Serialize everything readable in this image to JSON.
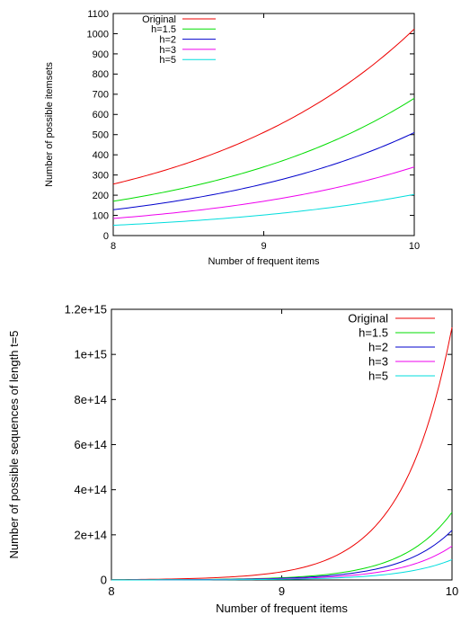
{
  "chart_data": [
    {
      "type": "line",
      "xlabel": "Number of frequent items",
      "ylabel": "Number of possible itemsets",
      "xlim": [
        8,
        10
      ],
      "ylim": [
        0,
        1100
      ],
      "xticks": [
        "8",
        "9",
        "10"
      ],
      "yticks": [
        "0",
        "100",
        "200",
        "300",
        "400",
        "500",
        "600",
        "700",
        "800",
        "900",
        "1000",
        "1100"
      ],
      "legend_position": "top-left",
      "grid": false,
      "series": [
        {
          "name": "Original",
          "color": "#ee0000",
          "x": [
            8,
            9,
            10
          ],
          "y": [
            255,
            511,
            1023
          ]
        },
        {
          "name": "h=1.5",
          "color": "#00dd00",
          "x": [
            8,
            9,
            10
          ],
          "y": [
            170,
            340,
            680
          ]
        },
        {
          "name": "h=2",
          "color": "#0000cc",
          "x": [
            8,
            9,
            10
          ],
          "y": [
            128,
            256,
            510
          ]
        },
        {
          "name": "h=3",
          "color": "#ee00ee",
          "x": [
            8,
            9,
            10
          ],
          "y": [
            85,
            170,
            340
          ]
        },
        {
          "name": "h=5",
          "color": "#00dddd",
          "x": [
            8,
            9,
            10
          ],
          "y": [
            51,
            102,
            204
          ]
        }
      ]
    },
    {
      "type": "line",
      "xlabel": "Number of frequent items",
      "ylabel": "Number of possible sequences of length t=5",
      "xlim": [
        8,
        10
      ],
      "ylim": [
        0,
        1200000000000000.0
      ],
      "xticks": [
        "8",
        "9",
        "10"
      ],
      "yticks": [
        "0",
        "2e+14",
        "4e+14",
        "6e+14",
        "8e+14",
        "1e+15",
        "1.2e+15"
      ],
      "legend_position": "top-right",
      "grid": false,
      "series": [
        {
          "name": "Original",
          "color": "#ee0000",
          "x": [
            8,
            9,
            10
          ],
          "y": [
            1300000000000.0,
            36000000000000.0,
            1120000000000000.0
          ]
        },
        {
          "name": "h=1.5",
          "color": "#00dd00",
          "x": [
            8,
            9,
            10
          ],
          "y": [
            350000000000.0,
            9800000000000.0,
            300000000000000.0
          ]
        },
        {
          "name": "h=2",
          "color": "#0000cc",
          "x": [
            8,
            9,
            10
          ],
          "y": [
            260000000000.0,
            7300000000000.0,
            220000000000000.0
          ]
        },
        {
          "name": "h=3",
          "color": "#ee00ee",
          "x": [
            8,
            9,
            10
          ],
          "y": [
            180000000000.0,
            5000000000000.0,
            150000000000000.0
          ]
        },
        {
          "name": "h=5",
          "color": "#00dddd",
          "x": [
            8,
            9,
            10
          ],
          "y": [
            110000000000.0,
            3000000000000.0,
            90000000000000.0
          ]
        }
      ]
    }
  ]
}
